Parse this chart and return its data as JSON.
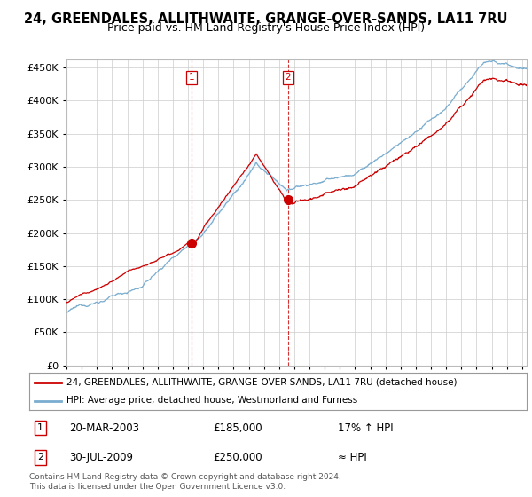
{
  "title": "24, GREENDALES, ALLITHWAITE, GRANGE-OVER-SANDS, LA11 7RU",
  "subtitle": "Price paid vs. HM Land Registry's House Price Index (HPI)",
  "ylim": [
    0,
    462000
  ],
  "yticks": [
    0,
    50000,
    100000,
    150000,
    200000,
    250000,
    300000,
    350000,
    400000,
    450000
  ],
  "start_year": 1995.0,
  "end_year": 2025.3,
  "line1_color": "#cc0000",
  "line2_color": "#7aadcf",
  "fill_color": "#ddeeff",
  "vline_color": "#cc0000",
  "sale1_year": 2003.22,
  "sale1_price": 185000,
  "sale2_year": 2009.58,
  "sale2_price": 250000,
  "legend1_text": "24, GREENDALES, ALLITHWAITE, GRANGE-OVER-SANDS, LA11 7RU (detached house)",
  "legend2_text": "HPI: Average price, detached house, Westmorland and Furness",
  "annotation1_date": "20-MAR-2003",
  "annotation1_price": "£185,000",
  "annotation1_hpi": "17% ↑ HPI",
  "annotation2_date": "30-JUL-2009",
  "annotation2_price": "£250,000",
  "annotation2_hpi": "≈ HPI",
  "footer": "Contains HM Land Registry data © Crown copyright and database right 2024.\nThis data is licensed under the Open Government Licence v3.0.",
  "title_fontsize": 10.5,
  "subtitle_fontsize": 9,
  "background_color": "#ffffff"
}
